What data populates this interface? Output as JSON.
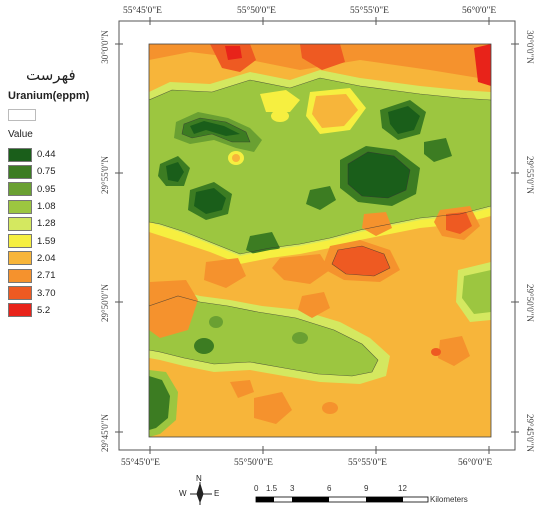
{
  "legend": {
    "title": "فهرست",
    "variable": "Uranium(eppm)",
    "value_header": "Value",
    "classes": [
      {
        "label": "0.44",
        "color": "#1a5e1a"
      },
      {
        "label": "0.75",
        "color": "#3c7c22"
      },
      {
        "label": "0.95",
        "color": "#6aa032"
      },
      {
        "label": "1.08",
        "color": "#9cc640"
      },
      {
        "label": "1.28",
        "color": "#d4e860"
      },
      {
        "label": "1.59",
        "color": "#f6ef40"
      },
      {
        "label": "2.04",
        "color": "#f7b53a"
      },
      {
        "label": "2.71",
        "color": "#f5922d"
      },
      {
        "label": "3.70",
        "color": "#ee5a22"
      },
      {
        "label": "5.2",
        "color": "#e8231a"
      }
    ]
  },
  "axes": {
    "top_lon": [
      "55°45'0\"E",
      "55°50'0\"E",
      "55°55'0\"E",
      "56°0'0\"E"
    ],
    "bottom_lon": [
      "55°45'0\"E",
      "55°50'0\"E",
      "55°55'0\"E",
      "56°0'0\"E"
    ],
    "left_lat": [
      "30°0'0\"N",
      "29°55'0\"N",
      "29°50'0\"N",
      "29°45'0\"N"
    ],
    "right_lat": [
      "30°0'0\"N",
      "29°55'0\"N",
      "29°50'0\"N",
      "29°45'0\"N"
    ]
  },
  "north_arrow": {
    "n": "N",
    "w": "W",
    "e": "E"
  },
  "scale_bar": {
    "ticks": [
      "0",
      "1.5",
      "3",
      "6",
      "9",
      "12"
    ],
    "unit": "Kilometers"
  }
}
